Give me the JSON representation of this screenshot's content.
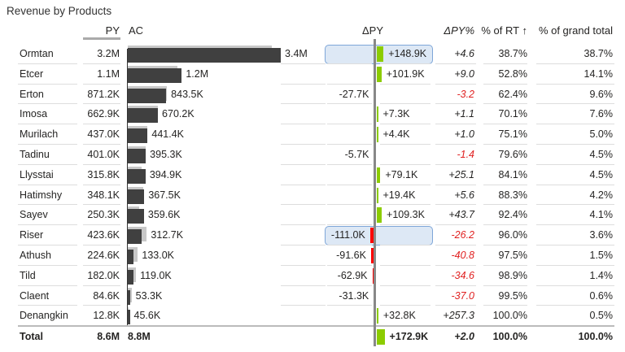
{
  "title": "Revenue by Products",
  "headers": {
    "py": "PY",
    "ac": "AC",
    "dpy": "ΔPY",
    "dpy_pct": "ΔPY%",
    "pct_rt": "% of RT ↑",
    "pct_gt": "% of grand total"
  },
  "colors": {
    "ac_bar": "#404040",
    "py_bar": "#c8c8c8",
    "positive": "#8ccc00",
    "negative": "#ff0000",
    "highlight": "#dde8f5"
  },
  "rows": [
    {
      "name": "Ormtan",
      "py": "3.2M",
      "ac": "3.4M",
      "dpy": "+148.9K",
      "dpy_pct": "+4.6",
      "pct_rt": "38.7%",
      "pct_gt": "38.7%",
      "py_v": 3.2,
      "ac_v": 3.4,
      "d_v": 148.9,
      "hl": true
    },
    {
      "name": "Etcer",
      "py": "1.1M",
      "ac": "1.2M",
      "dpy": "+101.9K",
      "dpy_pct": "+9.0",
      "pct_rt": "52.8%",
      "pct_gt": "14.1%",
      "py_v": 1.1,
      "ac_v": 1.2,
      "d_v": 101.9
    },
    {
      "name": "Erton",
      "py": "871.2K",
      "ac": "843.5K",
      "dpy": "-27.7K",
      "dpy_pct": "-3.2",
      "pct_rt": "62.4%",
      "pct_gt": "9.6%",
      "py_v": 0.8712,
      "ac_v": 0.8435,
      "d_v": -27.7
    },
    {
      "name": "Imosa",
      "py": "662.9K",
      "ac": "670.2K",
      "dpy": "+7.3K",
      "dpy_pct": "+1.1",
      "pct_rt": "70.1%",
      "pct_gt": "7.6%",
      "py_v": 0.6629,
      "ac_v": 0.6702,
      "d_v": 7.3
    },
    {
      "name": "Murilach",
      "py": "437.0K",
      "ac": "441.4K",
      "dpy": "+4.4K",
      "dpy_pct": "+1.0",
      "pct_rt": "75.1%",
      "pct_gt": "5.0%",
      "py_v": 0.437,
      "ac_v": 0.4414,
      "d_v": 4.4
    },
    {
      "name": "Tadinu",
      "py": "401.0K",
      "ac": "395.3K",
      "dpy": "-5.7K",
      "dpy_pct": "-1.4",
      "pct_rt": "79.6%",
      "pct_gt": "4.5%",
      "py_v": 0.401,
      "ac_v": 0.3953,
      "d_v": -5.7
    },
    {
      "name": "Llysstai",
      "py": "315.8K",
      "ac": "394.9K",
      "dpy": "+79.1K",
      "dpy_pct": "+25.1",
      "pct_rt": "84.1%",
      "pct_gt": "4.5%",
      "py_v": 0.3158,
      "ac_v": 0.3949,
      "d_v": 79.1
    },
    {
      "name": "Hatimshy",
      "py": "348.1K",
      "ac": "367.5K",
      "dpy": "+19.4K",
      "dpy_pct": "+5.6",
      "pct_rt": "88.3%",
      "pct_gt": "4.2%",
      "py_v": 0.3481,
      "ac_v": 0.3675,
      "d_v": 19.4
    },
    {
      "name": "Sayev",
      "py": "250.3K",
      "ac": "359.6K",
      "dpy": "+109.3K",
      "dpy_pct": "+43.7",
      "pct_rt": "92.4%",
      "pct_gt": "4.1%",
      "py_v": 0.2503,
      "ac_v": 0.3596,
      "d_v": 109.3
    },
    {
      "name": "Riser",
      "py": "423.6K",
      "ac": "312.7K",
      "dpy": "-111.0K",
      "dpy_pct": "-26.2",
      "pct_rt": "96.0%",
      "pct_gt": "3.6%",
      "py_v": 0.4236,
      "ac_v": 0.3127,
      "d_v": -111.0,
      "hl": true
    },
    {
      "name": "Athush",
      "py": "224.6K",
      "ac": "133.0K",
      "dpy": "-91.6K",
      "dpy_pct": "-40.8",
      "pct_rt": "97.5%",
      "pct_gt": "1.5%",
      "py_v": 0.2246,
      "ac_v": 0.133,
      "d_v": -91.6
    },
    {
      "name": "Tild",
      "py": "182.0K",
      "ac": "119.0K",
      "dpy": "-62.9K",
      "dpy_pct": "-34.6",
      "pct_rt": "98.9%",
      "pct_gt": "1.4%",
      "py_v": 0.182,
      "ac_v": 0.119,
      "d_v": -62.9
    },
    {
      "name": "Claent",
      "py": "84.6K",
      "ac": "53.3K",
      "dpy": "-31.3K",
      "dpy_pct": "-37.0",
      "pct_rt": "99.5%",
      "pct_gt": "0.6%",
      "py_v": 0.0846,
      "ac_v": 0.0533,
      "d_v": -31.3
    },
    {
      "name": "Denangkin",
      "py": "12.8K",
      "ac": "45.6K",
      "dpy": "+32.8K",
      "dpy_pct": "+257.3",
      "pct_rt": "100.0%",
      "pct_gt": "0.5%",
      "py_v": 0.0128,
      "ac_v": 0.0456,
      "d_v": 32.8
    }
  ],
  "total": {
    "name": "Total",
    "py": "8.6M",
    "ac": "8.8M",
    "dpy": "+172.9K",
    "dpy_pct": "+2.0",
    "pct_rt": "100.0%",
    "pct_gt": "100.0%",
    "d_v": 172.9
  }
}
